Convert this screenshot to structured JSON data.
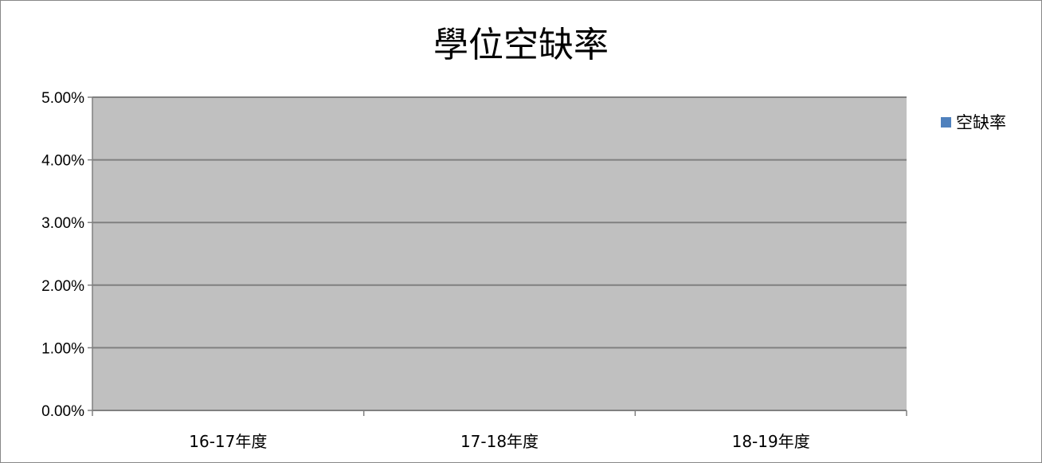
{
  "chart_data": {
    "type": "bar",
    "title": "學位空缺率",
    "categories": [
      "16-17年度",
      "17-18年度",
      "18-19年度"
    ],
    "series": [
      {
        "name": "空缺率",
        "values": [
          0,
          0,
          0
        ],
        "color": "#4F81BD"
      }
    ],
    "yticks": [
      "0.00%",
      "1.00%",
      "2.00%",
      "3.00%",
      "4.00%",
      "5.00%"
    ],
    "ylim": [
      0,
      0.05
    ],
    "grid": true,
    "legend_position": "right",
    "plot_background": "#C0C0C0"
  }
}
